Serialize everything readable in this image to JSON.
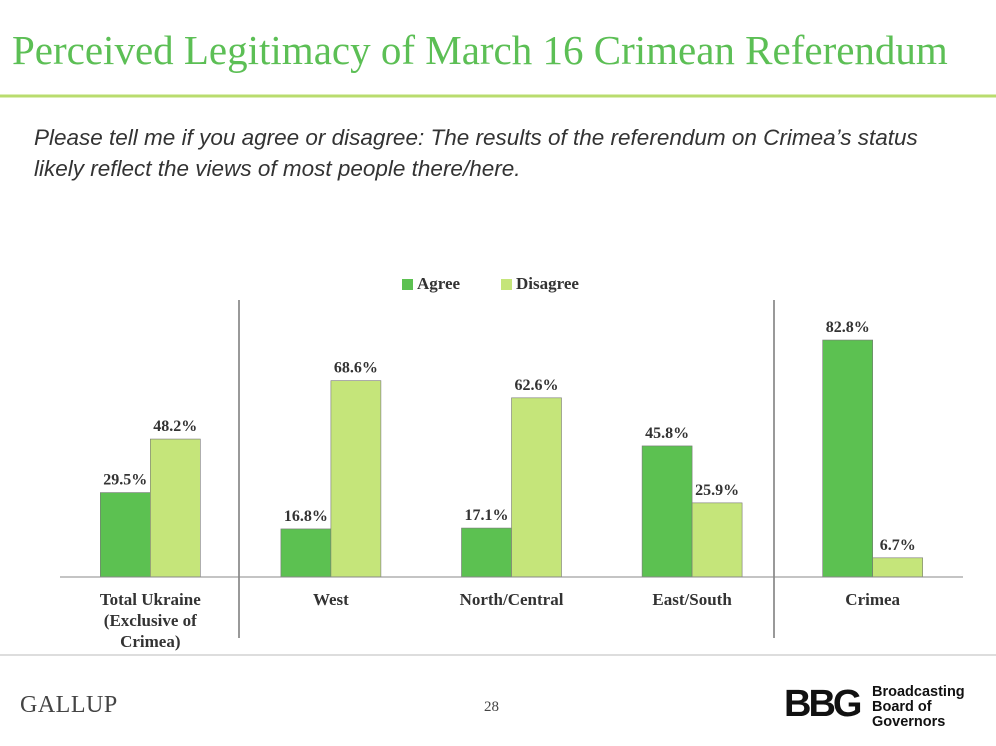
{
  "chart_data": {
    "type": "bar",
    "title": "Perceived Legitimacy of March 16 Crimean Referendum",
    "subtitle": "Please tell me if you agree or disagree: The results of the referendum on Crimea’s status likely reflect the views of most people there/here.",
    "categories": [
      "Total Ukraine (Exclusive of Crimea)",
      "West",
      "North/Central",
      "East/South",
      "Crimea"
    ],
    "series": [
      {
        "name": "Agree",
        "color": "#5cc151",
        "values": [
          29.5,
          16.8,
          17.1,
          45.8,
          82.8
        ],
        "value_labels": [
          "29.5%",
          "16.8%",
          "17.1%",
          "45.8%",
          "82.8%"
        ]
      },
      {
        "name": "Disagree",
        "color": "#c5e57a",
        "values": [
          48.2,
          68.6,
          62.6,
          25.9,
          6.7
        ],
        "value_labels": [
          "48.2%",
          "68.6%",
          "62.6%",
          "25.9%",
          "6.7%"
        ]
      }
    ],
    "legend": "top"
  },
  "footer": {
    "brand": "GALLUP",
    "page": "28",
    "logo": "BBG",
    "logo_text": [
      "Broadcasting",
      "Board of",
      "Governors"
    ]
  }
}
